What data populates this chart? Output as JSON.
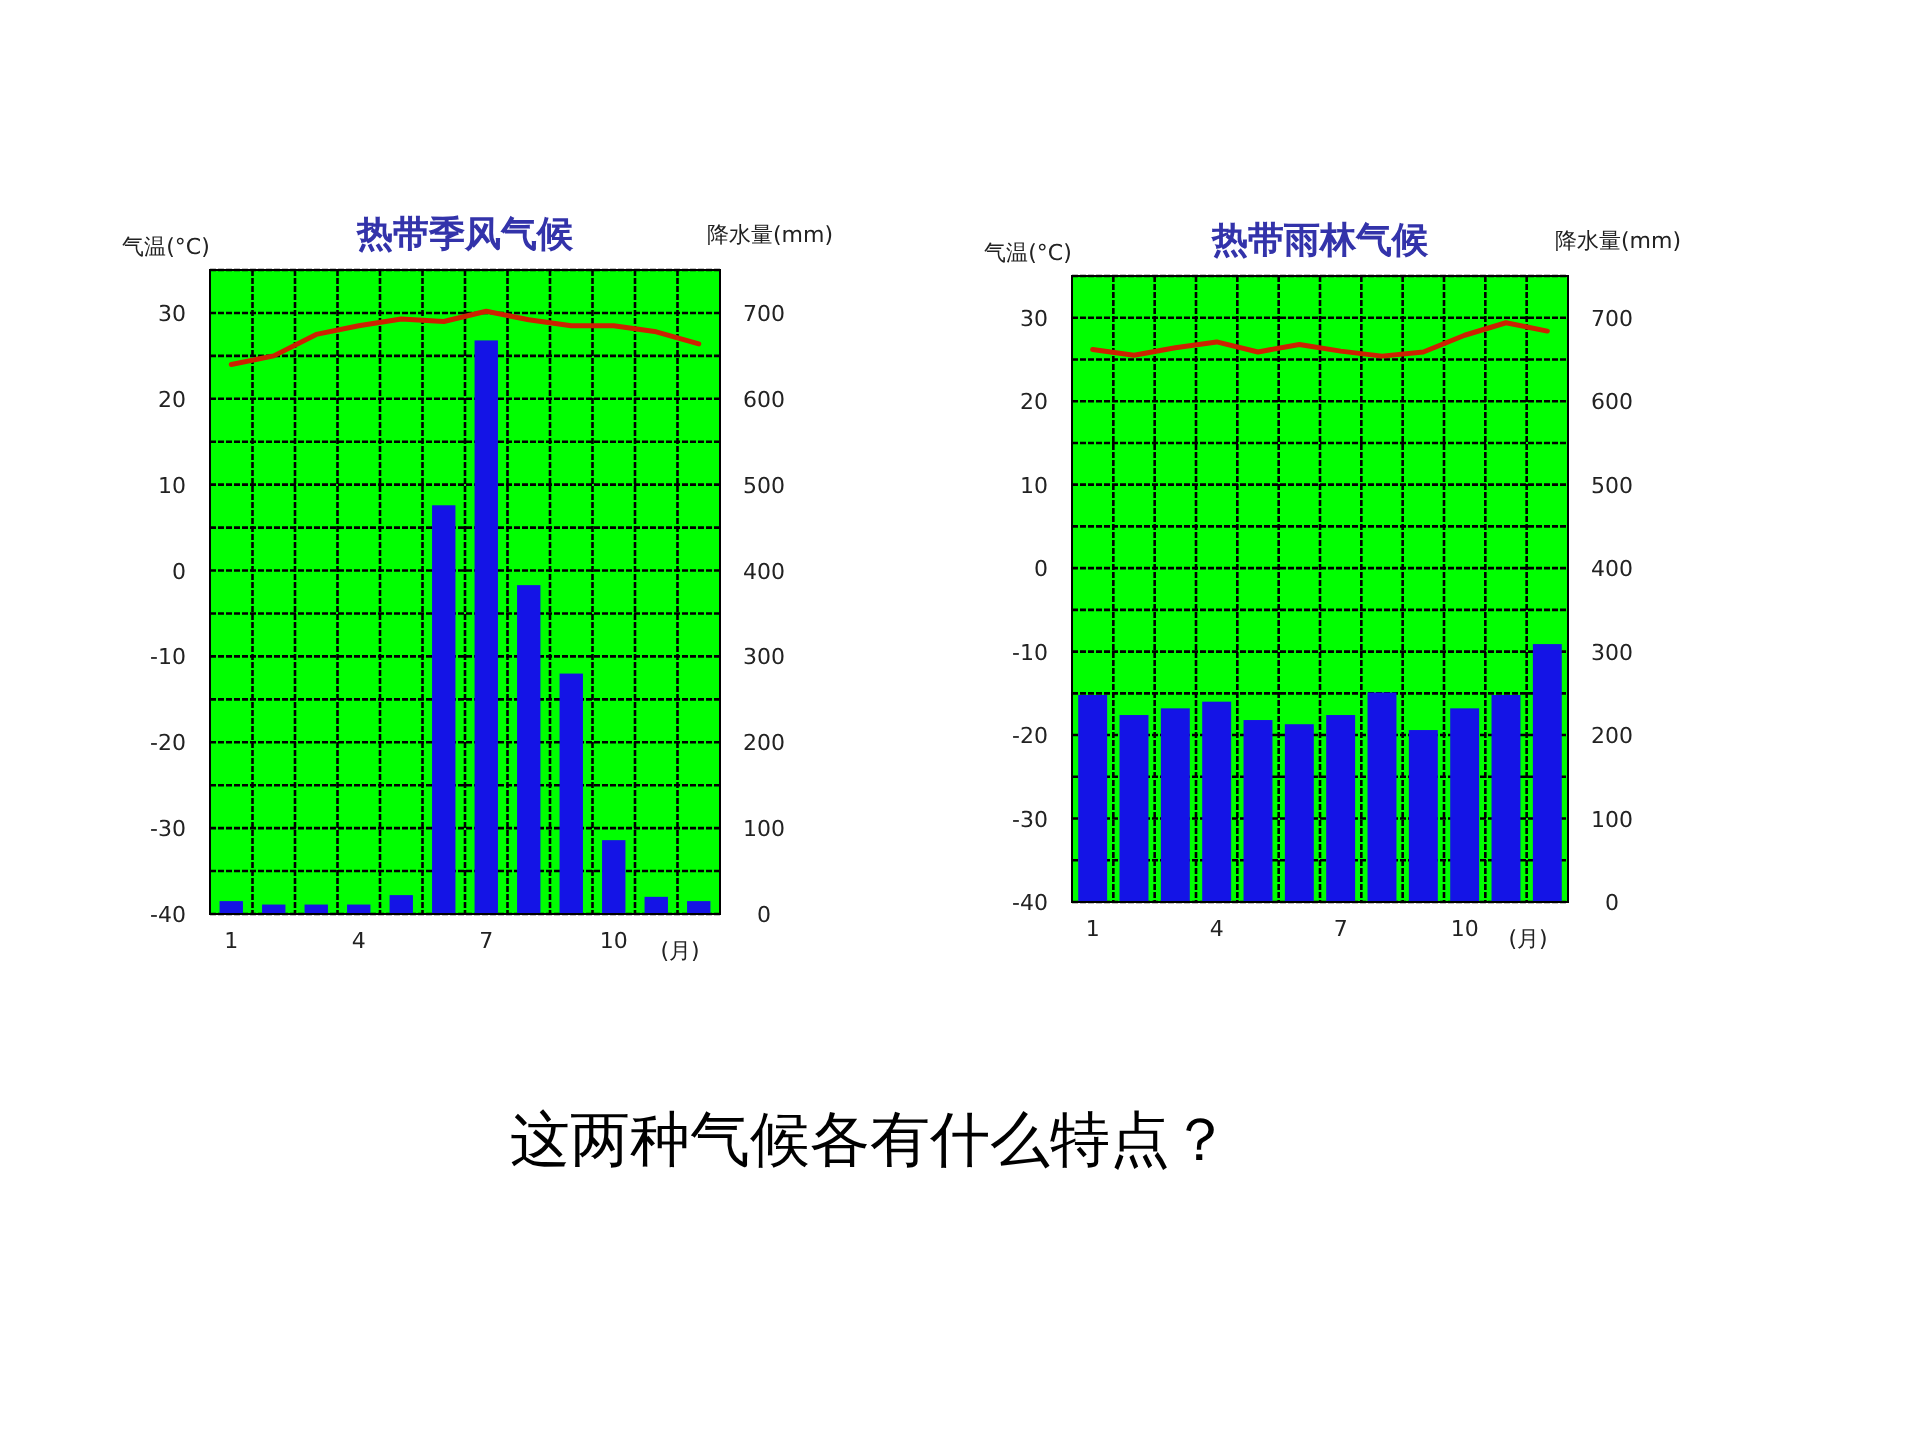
{
  "chart_data": [
    {
      "type": "bar",
      "title": "热带季风气候",
      "ylabel": "气温(°C)",
      "y2label": "降水量(mm)",
      "xlabel": "(月)",
      "categories": [
        "1",
        null,
        null,
        "4",
        null,
        null,
        "7",
        null,
        null,
        "10",
        null,
        null
      ],
      "ylim": [
        -40,
        35
      ],
      "yticks": [
        -40,
        -30,
        -20,
        -10,
        0,
        10,
        20,
        30
      ],
      "y2lim": [
        0,
        750
      ],
      "y2ticks": [
        0,
        100,
        200,
        300,
        400,
        500,
        600,
        700
      ],
      "grid": true,
      "series": [
        {
          "type": "bar",
          "axis": "y2",
          "color": "#1414e6",
          "values": [
            15,
            11,
            11,
            11,
            22,
            476,
            668,
            383,
            280,
            86,
            20,
            15
          ]
        },
        {
          "type": "line",
          "color": "#cc2200",
          "values": [
            24,
            25,
            27.5,
            28.5,
            29.3,
            29,
            30.2,
            29.2,
            28.5,
            28.5,
            27.8,
            26.4
          ]
        }
      ]
    },
    {
      "type": "bar",
      "title": "热带雨林气候",
      "ylabel": "气温(°C)",
      "y2label": "降水量(mm)",
      "xlabel": "(月)",
      "categories": [
        "1",
        null,
        null,
        "4",
        null,
        null,
        "7",
        null,
        null,
        "10",
        null,
        null
      ],
      "ylim": [
        -40,
        35
      ],
      "yticks": [
        -40,
        -30,
        -20,
        -10,
        0,
        10,
        20,
        30
      ],
      "y2lim": [
        0,
        750
      ],
      "y2ticks": [
        0,
        100,
        200,
        300,
        400,
        500,
        600,
        700
      ],
      "grid": true,
      "series": [
        {
          "type": "bar",
          "axis": "y2",
          "color": "#1414e6",
          "values": [
            248,
            224,
            232,
            240,
            218,
            213,
            224,
            251,
            206,
            232,
            248,
            309
          ]
        },
        {
          "type": "line",
          "color": "#cc2200",
          "values": [
            26.2,
            25.5,
            26.4,
            27.1,
            25.9,
            26.8,
            26,
            25.4,
            25.9,
            27.9,
            29.4,
            28.4
          ]
        }
      ]
    },
    {
      "type": "other",
      "title": "这两种气候各有什么特点？"
    }
  ]
}
